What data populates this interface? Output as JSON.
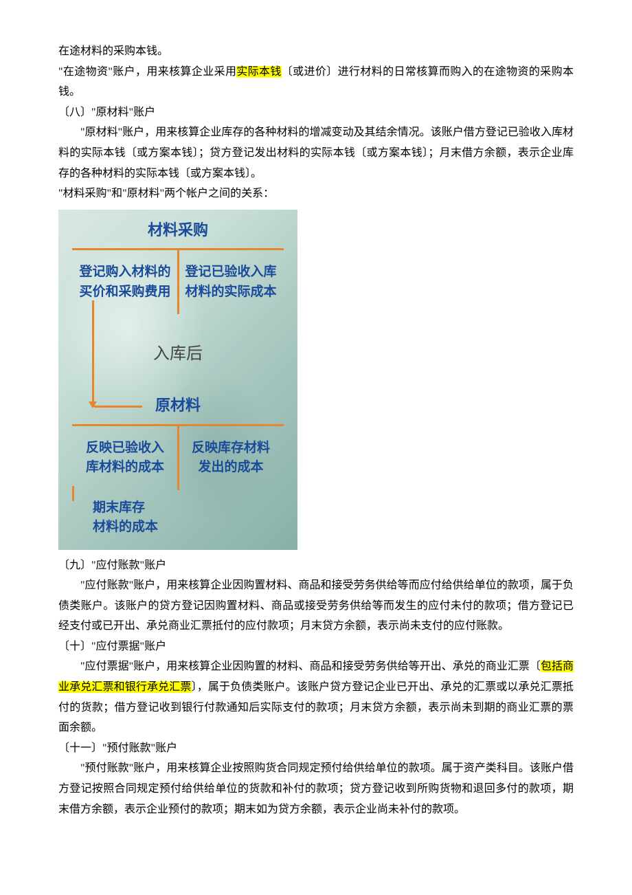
{
  "intro": {
    "line1": "在途材料的采购本钱。",
    "line2_pre": "\"在途物资\"账户，用来核算企业采用",
    "line2_hl": "实际本钱",
    "line2_post": "〔或进价〕进行材料的日常核算而购入的在途物资的采购本钱。"
  },
  "section8": {
    "heading": "〔八〕\"原材料\"账户",
    "p1": "\"原材料\"账户，用来核算企业库存的各种材料的增减变动及其结余情况。该账户借方登记已验收入库材料的实际本钱〔或方案本钱〕；贷方登记发出材料的实际本钱〔或方案本钱〕；月末借方余额，表示企业库存的各种材料的实际本钱〔或方案本钱〕。",
    "p2": "\"材料采购\"和\"原材料\"两个帐户之间的关系："
  },
  "diagram": {
    "top_title": "材料采购",
    "top_left_l1": "登记购入材料的",
    "top_left_l2": "买价和采购费用",
    "top_right_l1": "登记已验收入库",
    "top_right_l2": "材料的实际成本",
    "mid_label": "入库后",
    "bot_title": "原材料",
    "bot_left_l1": "反映已验收入",
    "bot_left_l2": "库材料的成本",
    "bot_right_l1": "反映库存材料",
    "bot_right_l2": "发出的成本",
    "balance_l1": "期末库存",
    "balance_l2": "材料的成本",
    "colors": {
      "text": "#1a4a9a",
      "line": "#e8852a",
      "bg_start": "#d8e8e0",
      "bg_end": "#88b0a8"
    }
  },
  "section9": {
    "heading": "〔九〕\"应付账款\"账户",
    "p1": "\"应付账款\"账户，用来核算企业因购置材料、商品和接受劳务供给等而应付给供给单位的款项，属于负债类账户。该账户的贷方登记因购置材料、商品或接受劳务供给等而发生的应付未付的款项；借方登记已经支付或已开出、承兑商业汇票抵付的应付款项；月末贷方余额，表示尚未支付的应付账款。"
  },
  "section10": {
    "heading": "〔十〕\"应付票据\"账户",
    "p1_pre": "\"应付票据\"账户，用来核算企业因购置的材料、商品和接受劳务供给等开出、承兑的商业汇票〔",
    "p1_hl": "包括商业承兑汇票和银行承兑汇票",
    "p1_post": "〕，属于负债类账户。该账户贷方登记企业已开出、承兑的汇票或以承兑汇票抵付的货款；借方登记收到银行付款通知后实际支付的款项；月末贷方余额，表示尚未到期的商业汇票的票面余额。"
  },
  "section11": {
    "heading": "〔十一〕\"预付账款\"账户",
    "p1": "\"预付账款\"账户，用来核算企业按照购货合同规定预付给供给单位的款项。属于资产类科目。该账户借方登记按照合同规定预付给供给单位的货款和补付的款项；贷方登记收到所购货物和退回多付的款项，期末借方余额，表示企业预付的款项；期末如为贷方余额，表示企业尚未补付的款项。"
  }
}
